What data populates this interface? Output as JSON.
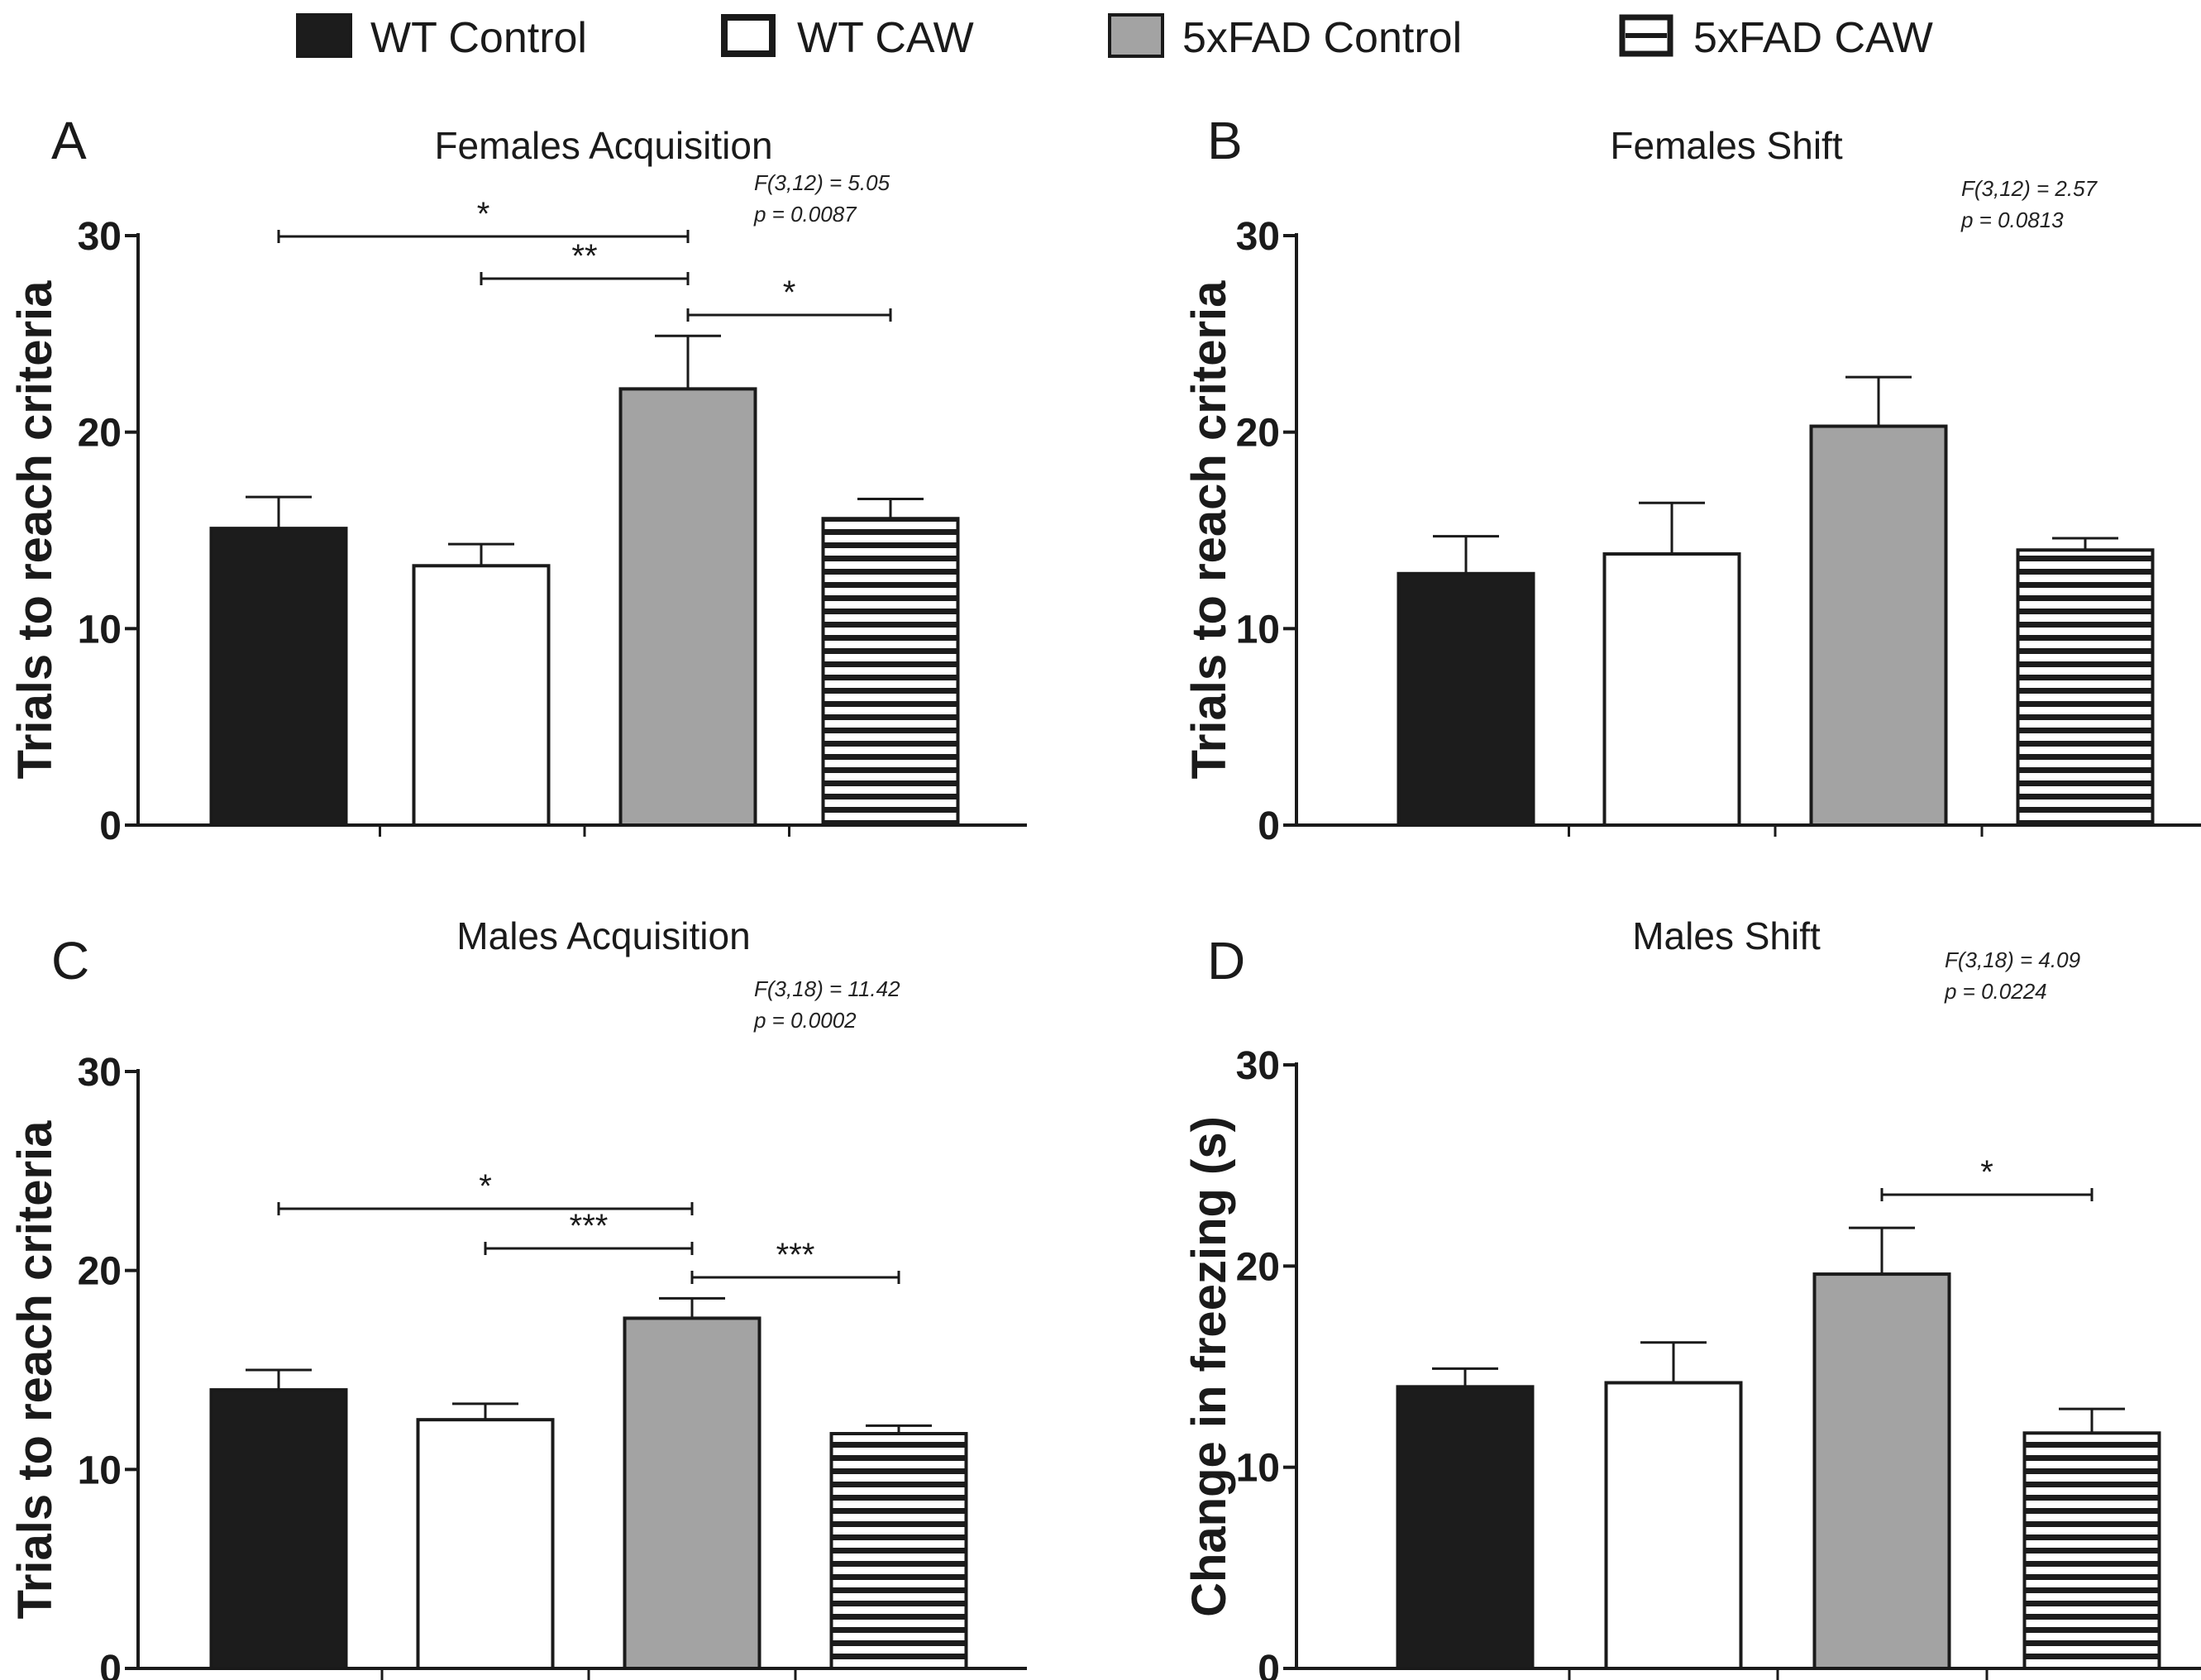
{
  "legend": [
    {
      "label": "WT Control",
      "fill": "solid-black"
    },
    {
      "label": "WT CAW",
      "fill": "open-white"
    },
    {
      "label": "5xFAD Control",
      "fill": "solid-gray"
    },
    {
      "label": "5xFAD CAW",
      "fill": "horizontal-stripes"
    }
  ],
  "colors": {
    "black": "#1c1c1c",
    "gray": "#a3a3a3",
    "white": "#ffffff",
    "stroke": "#1a1a1a"
  },
  "chart_data": [
    {
      "panel": "A",
      "type": "bar",
      "title": "Females Acquisition",
      "ylabel": "Trials to reach criteria",
      "xlabel": "",
      "ylim": [
        0,
        30
      ],
      "yticks": [
        0,
        10,
        20,
        30
      ],
      "categories": [
        "WT Control",
        "WT CAW",
        "5xFAD Control",
        "5xFAD CAW"
      ],
      "values": [
        15.1,
        13.2,
        22.2,
        15.6
      ],
      "errors": [
        1.6,
        1.1,
        2.7,
        1.0
      ],
      "stats": [
        "F(3,12) = 5.05",
        "p = 0.0087"
      ],
      "significance": [
        {
          "from": 0,
          "to": 2,
          "label": "*"
        },
        {
          "from": 1,
          "to": 2,
          "label": "**"
        },
        {
          "from": 2,
          "to": 3,
          "label": "*"
        }
      ]
    },
    {
      "panel": "B",
      "type": "bar",
      "title": "Females Shift",
      "ylabel": "Trials to reach criteria",
      "xlabel": "",
      "ylim": [
        0,
        30
      ],
      "yticks": [
        0,
        10,
        20,
        30
      ],
      "categories": [
        "WT Control",
        "WT CAW",
        "5xFAD Control",
        "5xFAD CAW"
      ],
      "values": [
        12.8,
        13.8,
        20.3,
        14.0
      ],
      "errors": [
        1.9,
        2.6,
        2.5,
        0.6
      ],
      "stats": [
        "F(3,12) = 2.57",
        "p = 0.0813"
      ],
      "significance": []
    },
    {
      "panel": "C",
      "type": "bar",
      "title": "Males Acquisition",
      "ylabel": "Trials to reach criteria",
      "xlabel": "",
      "ylim": [
        0,
        30
      ],
      "yticks": [
        0,
        10,
        20,
        30
      ],
      "categories": [
        "WT Control",
        "WT CAW",
        "5xFAD Control",
        "5xFAD CAW"
      ],
      "values": [
        14.0,
        12.5,
        17.6,
        11.8
      ],
      "errors": [
        1.0,
        0.8,
        1.0,
        0.4
      ],
      "stats": [
        "F(3,18) = 11.42",
        "p = 0.0002"
      ],
      "significance": [
        {
          "from": 0,
          "to": 2,
          "label": "*"
        },
        {
          "from": 1,
          "to": 2,
          "label": "***"
        },
        {
          "from": 2,
          "to": 3,
          "label": "***"
        }
      ]
    },
    {
      "panel": "D",
      "type": "bar",
      "title": "Males Shift",
      "ylabel": "Change in freezing (s)",
      "xlabel": "",
      "ylim": [
        0,
        30
      ],
      "yticks": [
        0,
        10,
        20,
        30
      ],
      "categories": [
        "WT Control",
        "WT CAW",
        "5xFAD Control",
        "5xFAD CAW"
      ],
      "values": [
        14.0,
        14.2,
        19.6,
        11.7
      ],
      "errors": [
        0.9,
        2.0,
        2.3,
        1.2
      ],
      "stats": [
        "F(3,18) = 4.09",
        "p = 0.0224"
      ],
      "significance": [
        {
          "from": 2,
          "to": 3,
          "label": "*"
        }
      ]
    }
  ]
}
